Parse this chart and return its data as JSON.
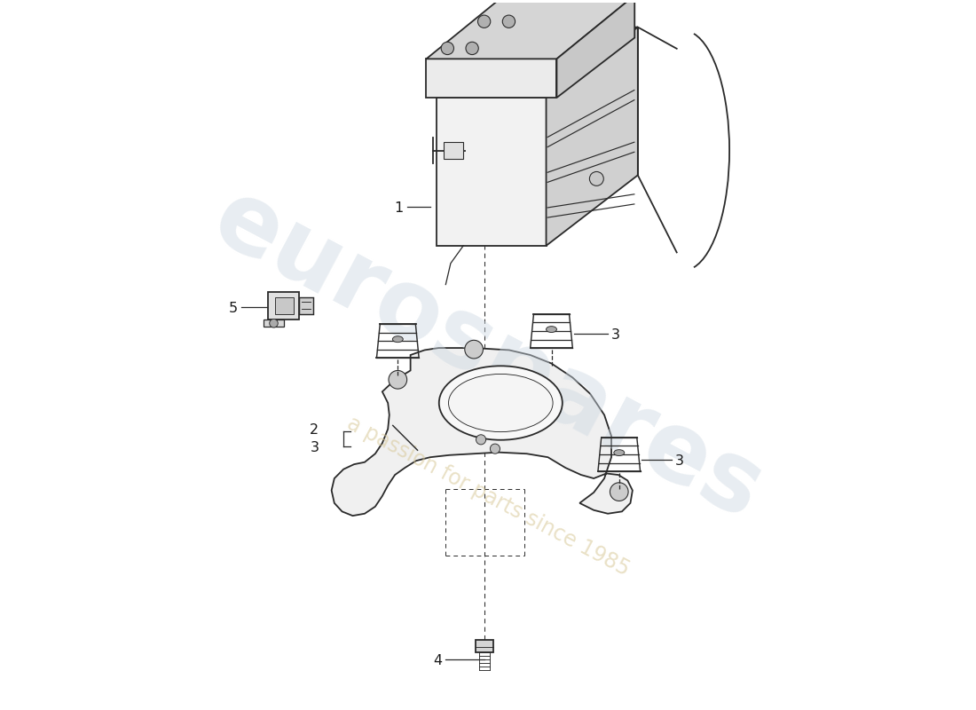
{
  "bg_color": "#ffffff",
  "line_color": "#2a2a2a",
  "label_color": "#1a1a1a",
  "watermark_text1": "eurospares",
  "watermark_text2": "a passion for parts since 1985"
}
